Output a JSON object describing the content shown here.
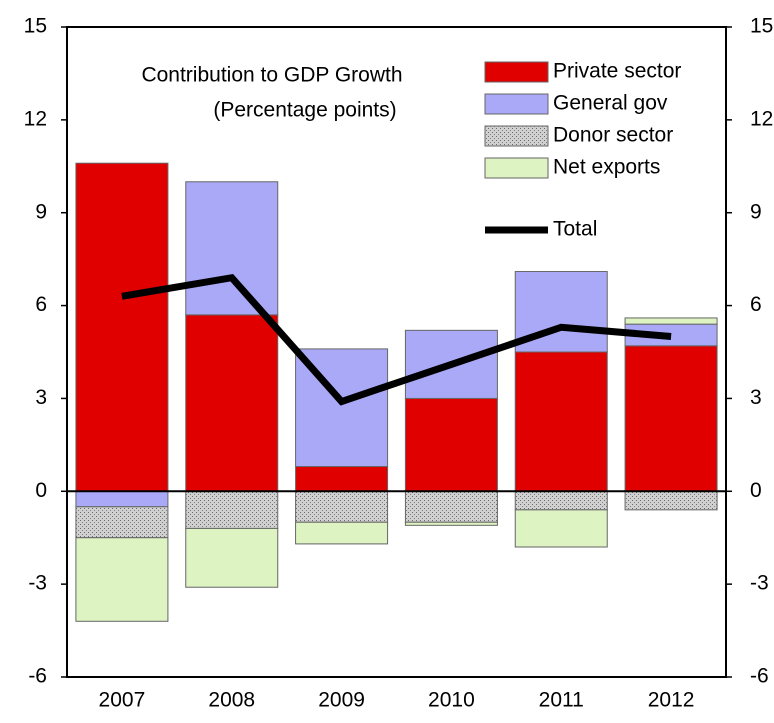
{
  "chart_data": {
    "type": "stacked-bar-line",
    "title": "Contribution to GDP Growth",
    "subtitle": "(Percentage points)",
    "categories": [
      "2007",
      "2008",
      "2009",
      "2010",
      "2011",
      "2012"
    ],
    "series": [
      {
        "name": "Private sector",
        "color": "#e00000",
        "values": [
          10.6,
          5.7,
          0.8,
          3.0,
          4.5,
          4.7
        ]
      },
      {
        "name": "General gov",
        "color": "#a9a9f7",
        "values": [
          -0.5,
          4.3,
          3.8,
          2.2,
          2.6,
          0.7
        ]
      },
      {
        "name": "Donor sector",
        "color": "#b4b4b4",
        "values": [
          -1.0,
          -1.2,
          -1.0,
          -1.0,
          -0.6,
          -0.6
        ]
      },
      {
        "name": "Net exports",
        "color": "#def3c2",
        "values": [
          -2.7,
          -1.9,
          -0.7,
          -0.1,
          -1.2,
          0.2
        ]
      },
      {
        "name": "Total",
        "type": "line",
        "color": "#000000",
        "values": [
          6.3,
          6.9,
          2.9,
          4.1,
          5.3,
          5.0
        ]
      }
    ],
    "ylim": [
      -6,
      15
    ],
    "yticks": [
      -6,
      -3,
      0,
      3,
      6,
      9,
      12,
      15
    ],
    "y2lim": [
      -6,
      15
    ],
    "y2ticks": [
      -6,
      -3,
      0,
      3,
      6,
      9,
      12,
      15
    ],
    "legend": "upper right"
  }
}
